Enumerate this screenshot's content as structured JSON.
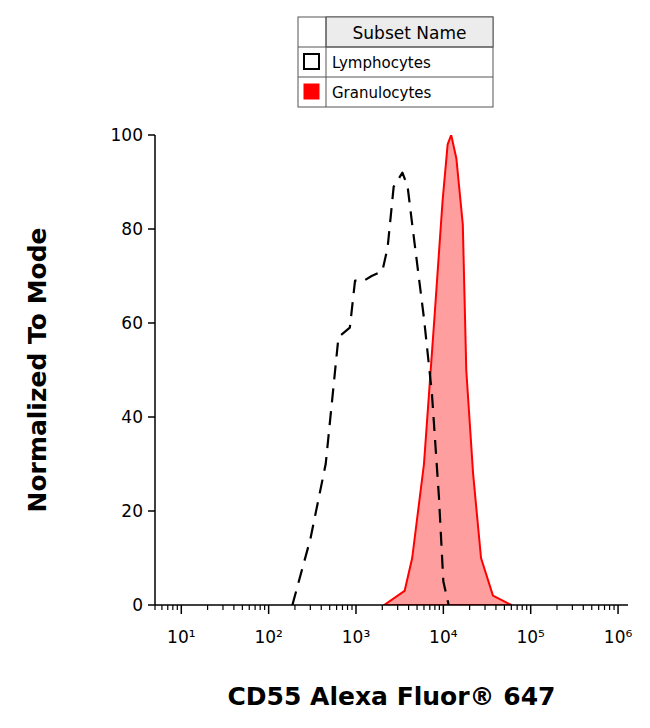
{
  "chart_data": {
    "type": "histogram_overlay",
    "x_label": "CD55 Alexa Fluor® 647",
    "y_label": "Normalized To Mode",
    "legend_title": "Subset Name",
    "legend": "top",
    "log": "x",
    "grid": false,
    "xlim": [
      5,
      1300000
    ],
    "ylim": [
      0,
      100
    ],
    "xticks": [
      {
        "value": 10,
        "label": "10¹"
      },
      {
        "value": 100,
        "label": "10²"
      },
      {
        "value": 1000,
        "label": "10³"
      },
      {
        "value": 10000,
        "label": "10⁴"
      },
      {
        "value": 100000,
        "label": "10⁵"
      },
      {
        "value": 1000000,
        "label": "10⁶"
      }
    ],
    "yticks": [
      0,
      20,
      40,
      60,
      80,
      100
    ],
    "series": [
      {
        "name": "Lymphocytes",
        "type": "line",
        "color": "#000000",
        "line_style": "dashed",
        "x": [
          187,
          300,
          450,
          630,
          850,
          975,
          1230,
          1510,
          2000,
          2300,
          2700,
          3400,
          3900,
          4400,
          6000,
          7400,
          8900,
          10000,
          11500
        ],
        "values": [
          0,
          14,
          30,
          57,
          59,
          69,
          69,
          70,
          71,
          76,
          89,
          92,
          89,
          81,
          61,
          45,
          23,
          5,
          0
        ]
      },
      {
        "name": "Granulocytes",
        "type": "area",
        "color": "#ff0000",
        "line_style": "solid",
        "x": [
          2100,
          3600,
          4400,
          6000,
          7900,
          9800,
          11200,
          12300,
          14100,
          16700,
          18300,
          21900,
          27000,
          37000,
          60000
        ],
        "values": [
          0,
          3,
          10,
          30,
          61,
          86,
          98,
          100,
          95,
          81,
          50,
          28,
          10,
          2,
          0
        ]
      }
    ]
  }
}
